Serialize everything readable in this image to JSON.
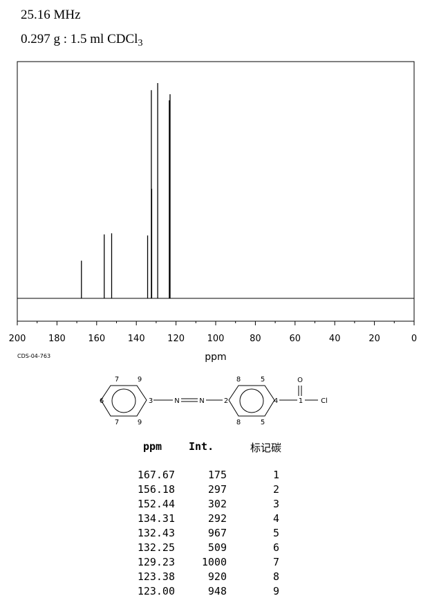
{
  "header": {
    "frequency": "25.16 MHz",
    "sample_main": "0.297 g : 1.5 ml CDCl",
    "sample_sub": "3"
  },
  "chart_data": {
    "type": "line",
    "xlabel": "ppm",
    "xlim": [
      200,
      0
    ],
    "xticks": [
      200,
      180,
      160,
      140,
      120,
      100,
      80,
      60,
      40,
      20,
      0
    ],
    "ylim": [
      0,
      1000
    ],
    "grid": false,
    "peaks": [
      {
        "ppm": 167.67,
        "intensity": 175
      },
      {
        "ppm": 156.18,
        "intensity": 297
      },
      {
        "ppm": 152.44,
        "intensity": 302
      },
      {
        "ppm": 134.31,
        "intensity": 292
      },
      {
        "ppm": 132.43,
        "intensity": 967
      },
      {
        "ppm": 132.25,
        "intensity": 509
      },
      {
        "ppm": 129.23,
        "intensity": 1000
      },
      {
        "ppm": 123.38,
        "intensity": 920
      },
      {
        "ppm": 123.0,
        "intensity": 948
      }
    ]
  },
  "code": "CDS-04-763",
  "structure": {
    "ring1": [
      "7",
      "9",
      "6",
      "3",
      "7",
      "9"
    ],
    "azo": [
      "N",
      "N"
    ],
    "ring2": [
      "8",
      "5",
      "2",
      "4",
      "8",
      "5"
    ],
    "carbonyl": [
      "1",
      "O",
      "Cl"
    ]
  },
  "table": {
    "headers": {
      "ppm": "ppm",
      "int": "Int.",
      "label": "标记碳"
    },
    "rows": [
      [
        "167.67",
        "175",
        "1"
      ],
      [
        "156.18",
        "297",
        "2"
      ],
      [
        "152.44",
        "302",
        "3"
      ],
      [
        "134.31",
        "292",
        "4"
      ],
      [
        "132.43",
        "967",
        "5"
      ],
      [
        "132.25",
        "509",
        "6"
      ],
      [
        "129.23",
        "1000",
        "7"
      ],
      [
        "123.38",
        "920",
        "8"
      ],
      [
        "123.00",
        "948",
        "9"
      ]
    ]
  }
}
